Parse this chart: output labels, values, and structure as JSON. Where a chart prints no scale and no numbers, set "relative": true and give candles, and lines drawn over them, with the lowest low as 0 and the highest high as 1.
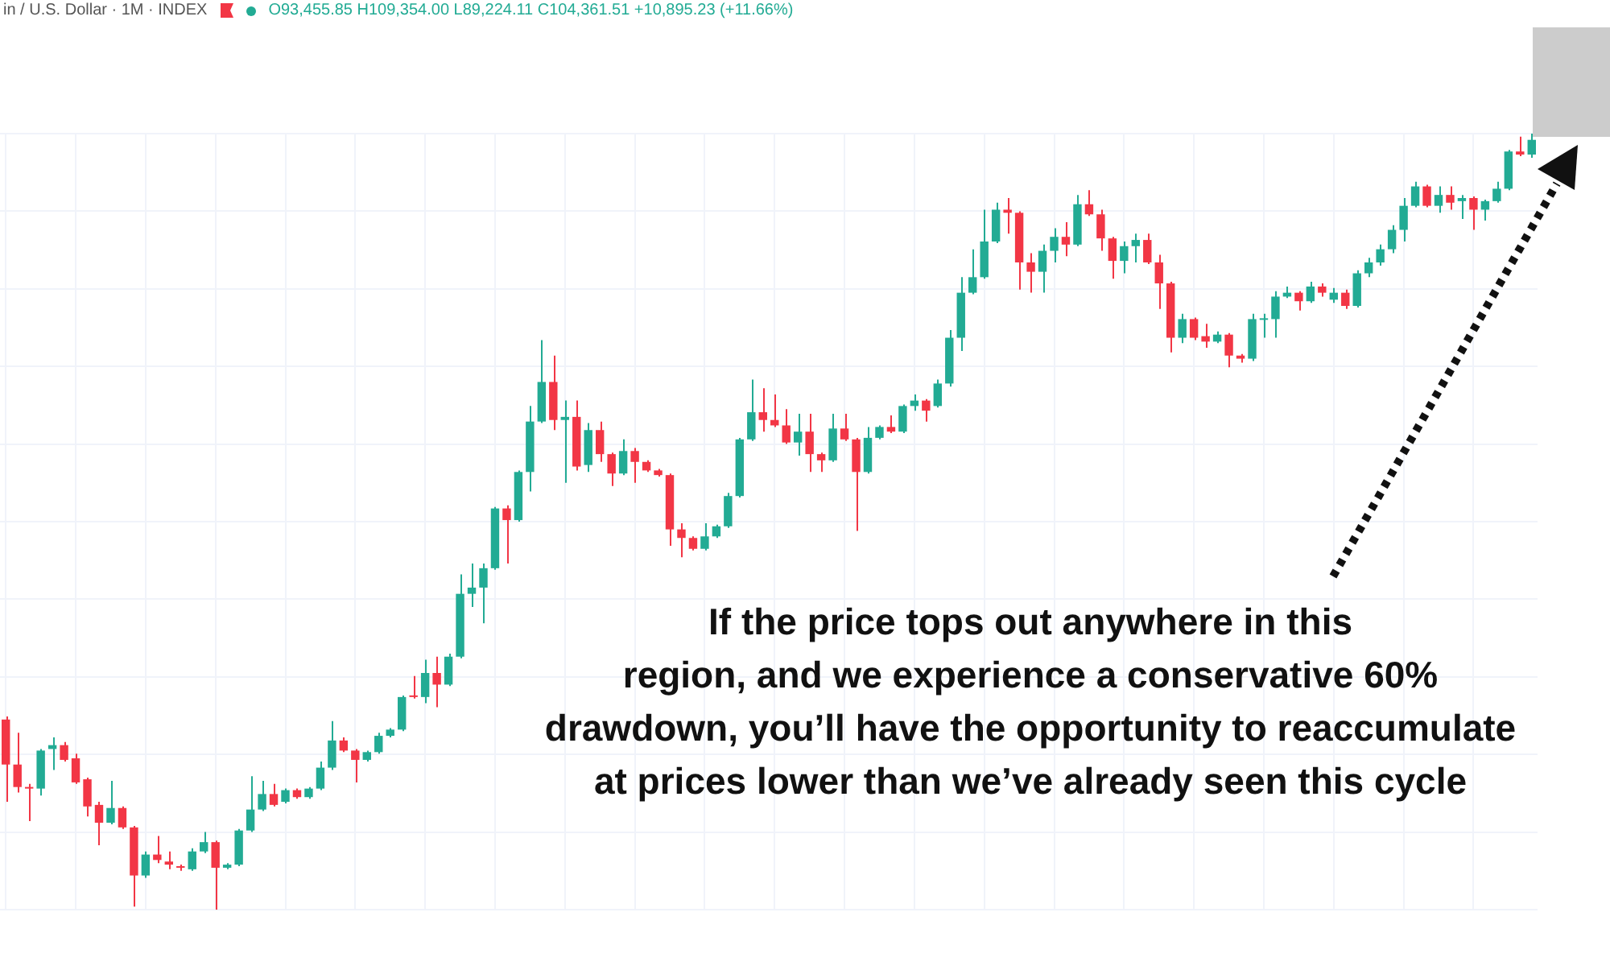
{
  "chart_data": {
    "type": "candlestick",
    "relative": true,
    "grid": true,
    "legend": false,
    "annotations": [
      "in / U.S. Dollar · 1M · INDEX",
      "O93,455.85 H109,354.00 L89,224.11 C104,361.51 +10,895.23 (+11.66%)",
      "If the price tops out anywhere in this",
      "region, and we experience a conservative 60%",
      "drawdown, you’ll have the opportunity to reaccumulate",
      "at prices lower than we’ve already seen this cycle"
    ],
    "categories": [
      null,
      null,
      null,
      null,
      null,
      null,
      null,
      null,
      null,
      null,
      null,
      null,
      null,
      null,
      null,
      null,
      null,
      null,
      null,
      null,
      null,
      null,
      null,
      null,
      null,
      null,
      null,
      null,
      null,
      null,
      null,
      null,
      null,
      null,
      null,
      null,
      null,
      null,
      null,
      null,
      null,
      null,
      null,
      null,
      null,
      null,
      null,
      null,
      null,
      null,
      null,
      null,
      null,
      null,
      null,
      null,
      null,
      null,
      null,
      null,
      null,
      null,
      null,
      null,
      null,
      null,
      null,
      null,
      null,
      null,
      null,
      null,
      null,
      null,
      null,
      null,
      null,
      null,
      null,
      null,
      null,
      null,
      null,
      null,
      null,
      null,
      null,
      null,
      null,
      null,
      null,
      null,
      null,
      null,
      null,
      null,
      null,
      null,
      null,
      null,
      null,
      null,
      null,
      null,
      null,
      null,
      null,
      null,
      null,
      null,
      null,
      null,
      null,
      null,
      null,
      null,
      null,
      null,
      null,
      null,
      null,
      null,
      null,
      null,
      null,
      null,
      null,
      null,
      null,
      null,
      null,
      null
    ],
    "colors": [
      "#f23645",
      "#f23645",
      "#f23645",
      "#22ab94",
      "#22ab94",
      "#f23645",
      "#f23645",
      "#f23645",
      "#f23645",
      "#22ab94",
      "#f23645",
      "#f23645",
      "#22ab94",
      "#f23645",
      "#f23645",
      "#f23645",
      "#22ab94",
      "#22ab94",
      "#f23645",
      "#22ab94",
      "#22ab94",
      "#22ab94",
      "#22ab94",
      "#f23645",
      "#22ab94",
      "#f23645",
      "#22ab94",
      "#22ab94",
      "#22ab94",
      "#f23645",
      "#f23645",
      "#22ab94",
      "#22ab94",
      "#22ab94",
      "#22ab94",
      "#f23645",
      "#22ab94",
      "#f23645",
      "#22ab94",
      "#22ab94",
      "#22ab94",
      "#22ab94",
      "#22ab94",
      "#f23645",
      "#22ab94",
      "#22ab94",
      "#22ab94",
      "#f23645",
      "#22ab94",
      "#f23645",
      "#22ab94",
      "#f23645",
      "#f23645",
      "#22ab94",
      "#f23645",
      "#f23645",
      "#f23645",
      "#f23645",
      "#f23645",
      "#f23645",
      "#22ab94",
      "#22ab94",
      "#22ab94",
      "#22ab94",
      "#22ab94",
      "#f23645",
      "#f23645",
      "#f23645",
      "#22ab94",
      "#f23645",
      "#f23645",
      "#22ab94",
      "#f23645",
      "#f23645",
      "#22ab94",
      "#22ab94",
      "#f23645",
      "#22ab94",
      "#22ab94",
      "#f23645",
      "#22ab94",
      "#22ab94",
      "#22ab94",
      "#22ab94",
      "#22ab94",
      "#22ab94",
      "#f23645",
      "#f23645",
      "#f23645",
      "#22ab94",
      "#22ab94",
      "#f23645",
      "#22ab94",
      "#f23645",
      "#f23645",
      "#f23645",
      "#22ab94",
      "#22ab94",
      "#f23645",
      "#f23645",
      "#f23645",
      "#22ab94",
      "#f23645",
      "#f23645",
      "#22ab94",
      "#f23645",
      "#f23645",
      "#22ab94",
      "#22ab94",
      "#22ab94",
      "#22ab94",
      "#f23645",
      "#22ab94",
      "#f23645",
      "#22ab94",
      "#f23645",
      "#22ab94",
      "#22ab94",
      "#22ab94",
      "#22ab94",
      "#22ab94",
      "#22ab94",
      "#f23645",
      "#22ab94",
      "#f23645",
      "#22ab94",
      "#f23645",
      "#22ab94",
      "#22ab94",
      "#22ab94",
      "#f23645",
      "#22ab94"
    ],
    "ohlc": [
      [
        0.245,
        0.249,
        0.139,
        0.187
      ],
      [
        0.187,
        0.228,
        0.151,
        0.158
      ],
      [
        0.158,
        0.162,
        0.114,
        0.156
      ],
      [
        0.156,
        0.207,
        0.147,
        0.205
      ],
      [
        0.207,
        0.222,
        0.18,
        0.212
      ],
      [
        0.212,
        0.216,
        0.191,
        0.193
      ],
      [
        0.195,
        0.201,
        0.162,
        0.164
      ],
      [
        0.168,
        0.17,
        0.12,
        0.133
      ],
      [
        0.135,
        0.139,
        0.083,
        0.112
      ],
      [
        0.112,
        0.166,
        0.11,
        0.131
      ],
      [
        0.131,
        0.133,
        0.104,
        0.106
      ],
      [
        0.106,
        0.108,
        0.004,
        0.044
      ],
      [
        0.044,
        0.075,
        0.041,
        0.071
      ],
      [
        0.071,
        0.095,
        0.06,
        0.064
      ],
      [
        0.062,
        0.075,
        0.052,
        0.058
      ],
      [
        0.056,
        0.058,
        0.05,
        0.054
      ],
      [
        0.052,
        0.079,
        0.05,
        0.075
      ],
      [
        0.075,
        0.1,
        0.073,
        0.087
      ],
      [
        0.087,
        0.089,
        0,
        0.054
      ],
      [
        0.054,
        0.06,
        0.052,
        0.058
      ],
      [
        0.058,
        0.104,
        0.056,
        0.102
      ],
      [
        0.102,
        0.172,
        0.1,
        0.129
      ],
      [
        0.129,
        0.166,
        0.127,
        0.149
      ],
      [
        0.149,
        0.162,
        0.133,
        0.135
      ],
      [
        0.139,
        0.156,
        0.137,
        0.154
      ],
      [
        0.154,
        0.156,
        0.143,
        0.145
      ],
      [
        0.145,
        0.158,
        0.143,
        0.156
      ],
      [
        0.156,
        0.191,
        0.154,
        0.183
      ],
      [
        0.183,
        0.243,
        0.18,
        0.218
      ],
      [
        0.218,
        0.222,
        0.203,
        0.205
      ],
      [
        0.205,
        0.207,
        0.164,
        0.193
      ],
      [
        0.193,
        0.205,
        0.191,
        0.203
      ],
      [
        0.203,
        0.228,
        0.201,
        0.224
      ],
      [
        0.224,
        0.234,
        0.222,
        0.232
      ],
      [
        0.232,
        0.276,
        0.23,
        0.274
      ],
      [
        0.276,
        0.301,
        0.272,
        0.274
      ],
      [
        0.274,
        0.322,
        0.266,
        0.305
      ],
      [
        0.305,
        0.326,
        0.261,
        0.29
      ],
      [
        0.29,
        0.33,
        0.288,
        0.326
      ],
      [
        0.326,
        0.432,
        0.324,
        0.407
      ],
      [
        0.407,
        0.446,
        0.39,
        0.415
      ],
      [
        0.415,
        0.446,
        0.369,
        0.44
      ],
      [
        0.44,
        0.519,
        0.438,
        0.517
      ],
      [
        0.517,
        0.521,
        0.446,
        0.502
      ],
      [
        0.502,
        0.566,
        0.5,
        0.564
      ],
      [
        0.564,
        0.649,
        0.539,
        0.629
      ],
      [
        0.629,
        0.734,
        0.627,
        0.68
      ],
      [
        0.68,
        0.714,
        0.618,
        0.631
      ],
      [
        0.631,
        0.656,
        0.55,
        0.635
      ],
      [
        0.635,
        0.656,
        0.566,
        0.571
      ],
      [
        0.573,
        0.627,
        0.564,
        0.618
      ],
      [
        0.618,
        0.629,
        0.577,
        0.587
      ],
      [
        0.587,
        0.589,
        0.546,
        0.562
      ],
      [
        0.562,
        0.606,
        0.56,
        0.591
      ],
      [
        0.591,
        0.595,
        0.55,
        0.577
      ],
      [
        0.577,
        0.579,
        0.564,
        0.566
      ],
      [
        0.566,
        0.568,
        0.558,
        0.56
      ],
      [
        0.56,
        0.562,
        0.469,
        0.49
      ],
      [
        0.49,
        0.498,
        0.454,
        0.479
      ],
      [
        0.479,
        0.481,
        0.463,
        0.465
      ],
      [
        0.465,
        0.498,
        0.463,
        0.481
      ],
      [
        0.481,
        0.496,
        0.479,
        0.494
      ],
      [
        0.494,
        0.537,
        0.492,
        0.533
      ],
      [
        0.533,
        0.608,
        0.531,
        0.606
      ],
      [
        0.606,
        0.683,
        0.604,
        0.641
      ],
      [
        0.641,
        0.672,
        0.616,
        0.631
      ],
      [
        0.631,
        0.664,
        0.622,
        0.624
      ],
      [
        0.624,
        0.645,
        0.6,
        0.602
      ],
      [
        0.602,
        0.639,
        0.585,
        0.616
      ],
      [
        0.616,
        0.639,
        0.564,
        0.587
      ],
      [
        0.587,
        0.589,
        0.564,
        0.579
      ],
      [
        0.579,
        0.639,
        0.577,
        0.62
      ],
      [
        0.62,
        0.639,
        0.604,
        0.606
      ],
      [
        0.606,
        0.608,
        0.488,
        0.564
      ],
      [
        0.564,
        0.622,
        0.562,
        0.608
      ],
      [
        0.608,
        0.624,
        0.606,
        0.622
      ],
      [
        0.622,
        0.637,
        0.614,
        0.616
      ],
      [
        0.616,
        0.651,
        0.614,
        0.649
      ],
      [
        0.649,
        0.664,
        0.643,
        0.656
      ],
      [
        0.656,
        0.658,
        0.629,
        0.643
      ],
      [
        0.649,
        0.683,
        0.647,
        0.678
      ],
      [
        0.678,
        0.747,
        0.674,
        0.737
      ],
      [
        0.737,
        0.815,
        0.72,
        0.795
      ],
      [
        0.795,
        0.851,
        0.793,
        0.815
      ],
      [
        0.815,
        0.902,
        0.813,
        0.861
      ],
      [
        0.861,
        0.911,
        0.859,
        0.902
      ],
      [
        0.902,
        0.917,
        0.871,
        0.898
      ],
      [
        0.898,
        0.9,
        0.799,
        0.834
      ],
      [
        0.834,
        0.846,
        0.795,
        0.822
      ],
      [
        0.822,
        0.857,
        0.795,
        0.849
      ],
      [
        0.849,
        0.878,
        0.834,
        0.867
      ],
      [
        0.867,
        0.886,
        0.842,
        0.857
      ],
      [
        0.857,
        0.921,
        0.855,
        0.909
      ],
      [
        0.909,
        0.927,
        0.894,
        0.896
      ],
      [
        0.896,
        0.902,
        0.849,
        0.865
      ],
      [
        0.865,
        0.867,
        0.813,
        0.836
      ],
      [
        0.836,
        0.861,
        0.82,
        0.855
      ],
      [
        0.855,
        0.871,
        0.834,
        0.863
      ],
      [
        0.863,
        0.871,
        0.832,
        0.834
      ],
      [
        0.834,
        0.844,
        0.774,
        0.807
      ],
      [
        0.807,
        0.809,
        0.718,
        0.737
      ],
      [
        0.737,
        0.768,
        0.73,
        0.761
      ],
      [
        0.761,
        0.763,
        0.734,
        0.737
      ],
      [
        0.739,
        0.755,
        0.724,
        0.732
      ],
      [
        0.732,
        0.745,
        0.73,
        0.741
      ],
      [
        0.741,
        0.743,
        0.699,
        0.714
      ],
      [
        0.714,
        0.716,
        0.705,
        0.71
      ],
      [
        0.71,
        0.768,
        0.707,
        0.761
      ],
      [
        0.76,
        0.768,
        0.737,
        0.762
      ],
      [
        0.761,
        0.797,
        0.737,
        0.79
      ],
      [
        0.79,
        0.803,
        0.788,
        0.795
      ],
      [
        0.795,
        0.797,
        0.772,
        0.784
      ],
      [
        0.784,
        0.809,
        0.782,
        0.803
      ],
      [
        0.803,
        0.807,
        0.79,
        0.795
      ],
      [
        0.786,
        0.801,
        0.782,
        0.795
      ],
      [
        0.795,
        0.799,
        0.774,
        0.778
      ],
      [
        0.778,
        0.824,
        0.776,
        0.82
      ],
      [
        0.82,
        0.84,
        0.815,
        0.834
      ],
      [
        0.834,
        0.857,
        0.83,
        0.851
      ],
      [
        0.851,
        0.882,
        0.846,
        0.876
      ],
      [
        0.876,
        0.917,
        0.861,
        0.907
      ],
      [
        0.907,
        0.938,
        0.905,
        0.932
      ],
      [
        0.932,
        0.934,
        0.905,
        0.907
      ],
      [
        0.907,
        0.932,
        0.898,
        0.921
      ],
      [
        0.921,
        0.932,
        0.902,
        0.911
      ],
      [
        0.913,
        0.921,
        0.89,
        0.917
      ],
      [
        0.917,
        0.919,
        0.876,
        0.902
      ],
      [
        0.902,
        0.915,
        0.888,
        0.913
      ],
      [
        0.913,
        0.938,
        0.911,
        0.929
      ],
      [
        0.929,
        0.979,
        0.927,
        0.977
      ],
      [
        0.977,
        0.996,
        0.971,
        0.973
      ],
      [
        0.973,
        1,
        0.969,
        0.992
      ]
    ]
  }
}
